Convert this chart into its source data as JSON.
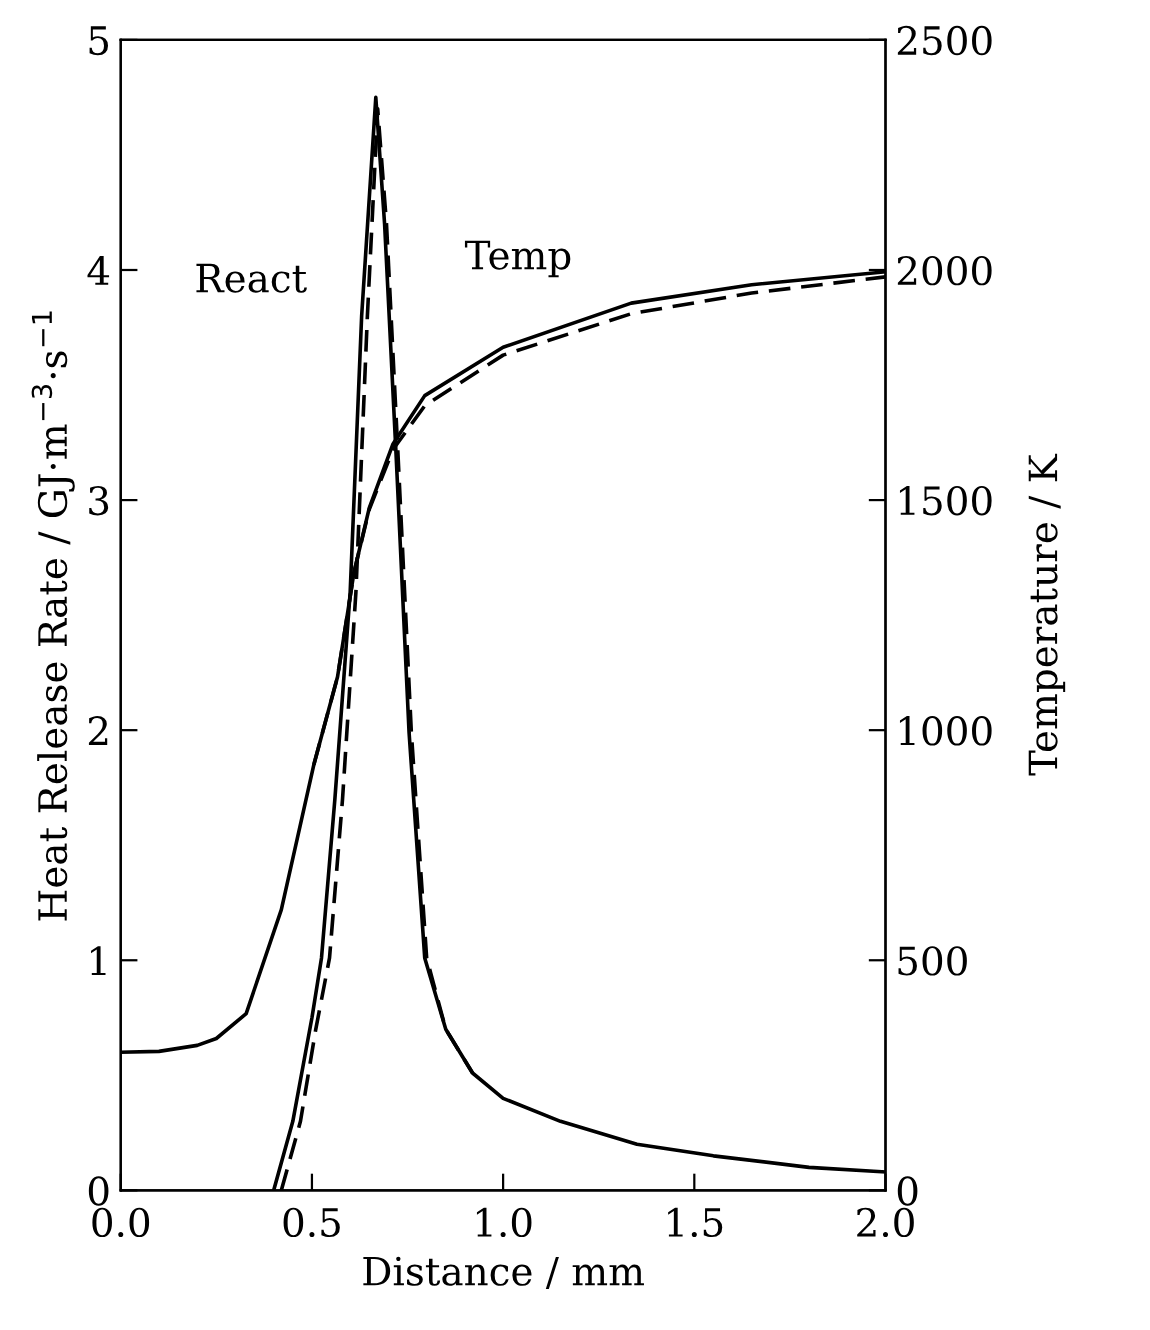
{
  "chart_data": {
    "type": "line",
    "xlabel": "Distance / mm",
    "ylabel": "Heat Release Rate / GJ·m$^{−3}$·s$^{−1}$",
    "y2label": "Temperature / K",
    "xlim": [
      0,
      2
    ],
    "xticks": [
      {
        "value": 0,
        "label": "0.0"
      },
      {
        "value": 0.5,
        "label": "0.5"
      },
      {
        "value": 1,
        "label": "1.0"
      },
      {
        "value": 1.5,
        "label": "1.5"
      },
      {
        "value": 2,
        "label": "2.0"
      }
    ],
    "ylim": [
      0,
      5
    ],
    "yticks": [
      0,
      1,
      2,
      3,
      4,
      5
    ],
    "y2lim": [
      0,
      2500
    ],
    "y2ticks": [
      0,
      500,
      1000,
      1500,
      2000,
      2500
    ],
    "grid": false,
    "legend": false,
    "marker": "none",
    "series": [
      {
        "color": "#000000",
        "line_style": "solid",
        "x": [
          0.4,
          0.45,
          0.5,
          0.525,
          0.56,
          0.6,
          0.63,
          0.667,
          0.69,
          0.72,
          0.754,
          0.795,
          0.85,
          0.92,
          1.0,
          1.15,
          1.35,
          1.55,
          1.8,
          2.0
        ],
        "values": [
          0,
          0.3,
          0.75,
          1.01,
          1.7,
          2.6,
          3.8,
          4.75,
          4.2,
          3.2,
          1.99,
          1.01,
          0.7,
          0.51,
          0.4,
          0.3,
          0.2,
          0.15,
          0.1,
          0.08
        ]
      },
      {
        "color": "#000000",
        "line_style": "dashed",
        "x": [
          0.42,
          0.47,
          0.51,
          0.546,
          0.58,
          0.615,
          0.645,
          0.672,
          0.695,
          0.725,
          0.76,
          0.8,
          0.85,
          0.92
        ],
        "values": [
          0,
          0.3,
          0.7,
          1.01,
          1.7,
          2.6,
          3.8,
          4.7,
          4.2,
          3.2,
          1.99,
          1.01,
          0.7,
          0.51
        ]
      },
      {
        "color": "#000000",
        "line_style": "solid",
        "axis": "y2",
        "x": [
          0,
          0.1,
          0.2,
          0.25,
          0.328,
          0.42,
          0.505,
          0.567,
          0.61,
          0.65,
          0.712,
          0.795,
          1.0,
          1.335,
          1.65,
          2.0
        ],
        "values": [
          300,
          302,
          315,
          330,
          384,
          610,
          925,
          1116,
          1343,
          1483,
          1622,
          1727,
          1832,
          1928,
          1968,
          1996
        ]
      },
      {
        "color": "#000000",
        "line_style": "dashed",
        "axis": "y2",
        "x": [
          0.505,
          0.567,
          0.61,
          0.65,
          0.712,
          0.795,
          1.0,
          1.335,
          1.65,
          2.0
        ],
        "values": [
          925,
          1116,
          1343,
          1480,
          1610,
          1705,
          1815,
          1905,
          1950,
          1985
        ]
      }
    ],
    "annotations": [
      "React",
      "Temp"
    ]
  }
}
